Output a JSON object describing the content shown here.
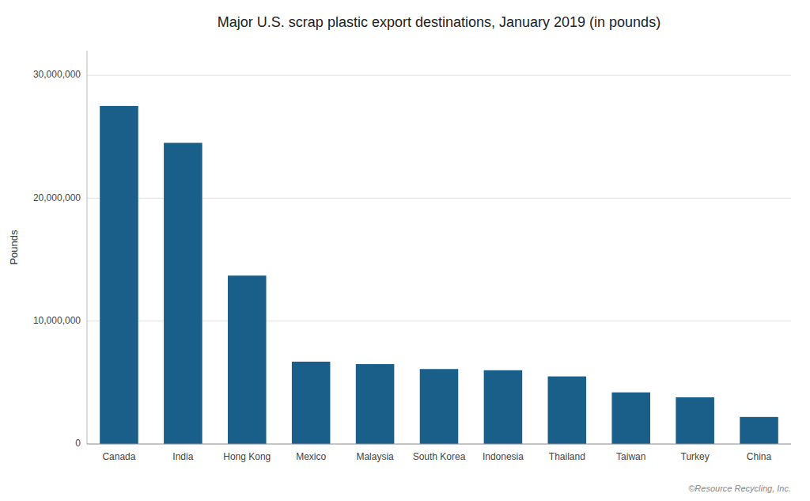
{
  "chart_data": {
    "type": "bar",
    "title": "Major U.S. scrap plastic export destinations, January 2019 (in pounds)",
    "categories": [
      "Canada",
      "India",
      "Hong Kong",
      "Mexico",
      "Malaysia",
      "South Korea",
      "Indonesia",
      "Thailand",
      "Taiwan",
      "Turkey",
      "China"
    ],
    "values": [
      27500000,
      24500000,
      13700000,
      6700000,
      6500000,
      6100000,
      6000000,
      5500000,
      4200000,
      3800000,
      2200000
    ],
    "color": "#1a5e8a",
    "ylabel": "Pounds",
    "ylim": [
      0,
      32000000
    ],
    "yticks": [
      0,
      {
        "value": 10000000,
        "label": "10,000,000"
      },
      {
        "value": 20000000,
        "label": "20,000,000"
      },
      {
        "value": 30000000,
        "label": "30,000,000"
      }
    ],
    "grid": true,
    "annotation": "©Resource Recycling, Inc."
  }
}
